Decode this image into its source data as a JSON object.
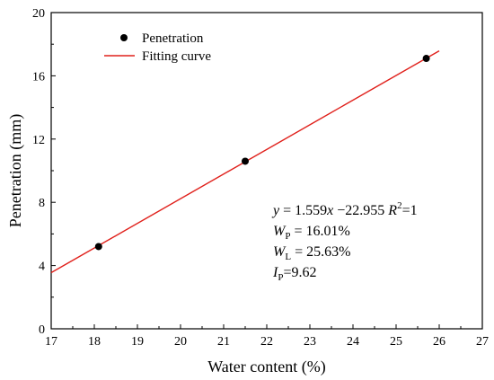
{
  "chart_data": {
    "type": "scatter",
    "title": "",
    "xlabel": "Water content (%)",
    "ylabel": "Penetration (mm)",
    "xlim": [
      17,
      27
    ],
    "ylim": [
      0,
      20
    ],
    "xticks": [
      "17",
      "18",
      "19",
      "20",
      "21",
      "22",
      "23",
      "24",
      "25",
      "26",
      "27"
    ],
    "yticks": [
      "0",
      "4",
      "8",
      "12",
      "16",
      "20"
    ],
    "grid": false,
    "legend_position": "top-left",
    "series": [
      {
        "name": "Penetration",
        "kind": "scatter",
        "color": "#000000",
        "x": [
          18.1,
          21.5,
          25.7
        ],
        "y": [
          5.2,
          10.6,
          17.1
        ]
      },
      {
        "name": "Fitting curve",
        "kind": "line",
        "color": "#e0201b",
        "x": [
          17.0,
          26.0
        ],
        "y": [
          3.55,
          17.58
        ]
      }
    ],
    "annotations": {
      "equation": {
        "y": "y",
        "eq_text": " = 1.559",
        "x": "x",
        "rest": " −22.955  ",
        "r": "R",
        "r_sup": "2",
        "r_val": "=1"
      },
      "wp": {
        "sym": "W",
        "sub": "P",
        "val": " = 16.01%"
      },
      "wl": {
        "sym": "W",
        "sub": "L",
        "val": " = 25.63%"
      },
      "ip": {
        "sym": "I",
        "sub": "P",
        "val": "=9.62"
      }
    }
  }
}
